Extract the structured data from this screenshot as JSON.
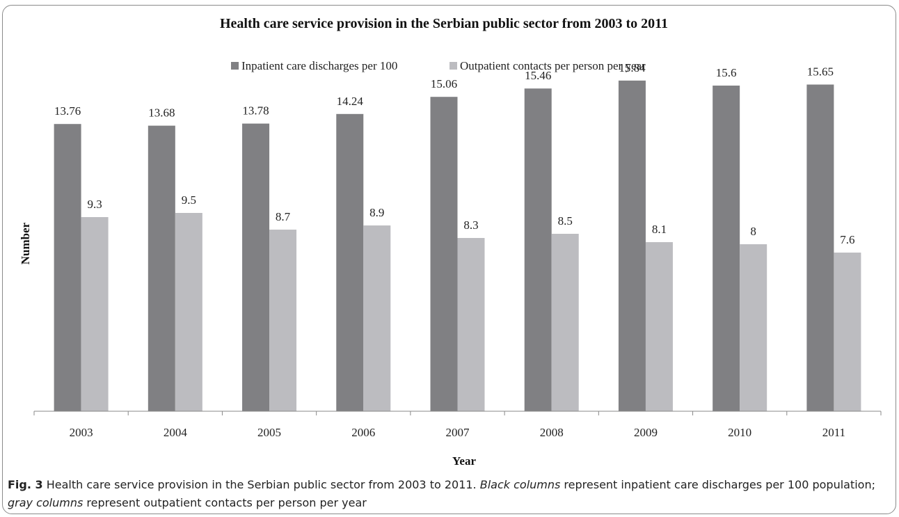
{
  "chart_data": {
    "type": "bar",
    "title": "Health care service provision in the Serbian public sector from 2003 to 2011",
    "xlabel": "Year",
    "ylabel": "Number",
    "categories": [
      "2003",
      "2004",
      "2005",
      "2006",
      "2007",
      "2008",
      "2009",
      "2010",
      "2011"
    ],
    "series": [
      {
        "name": "Inpatient care discharges per 100",
        "color": "#808083",
        "values": [
          13.76,
          13.68,
          13.78,
          14.24,
          15.06,
          15.46,
          15.84,
          15.6,
          15.65
        ],
        "labels": [
          "13.76",
          "13.68",
          "13.78",
          "14.24",
          "15.06",
          "15.46",
          "15.84",
          "15.6",
          "15.65"
        ]
      },
      {
        "name": "Outpatient contacts per person per year",
        "color": "#bcbcc0",
        "values": [
          9.3,
          9.5,
          8.7,
          8.9,
          8.3,
          8.5,
          8.1,
          8,
          7.6
        ],
        "labels": [
          "9.3",
          "9.5",
          "8.7",
          "8.9",
          "8.3",
          "8.5",
          "8.1",
          "8",
          "7.6"
        ]
      }
    ],
    "ylim": [
      0,
      18
    ],
    "legend_position": "top",
    "grid": false
  },
  "caption": {
    "fig_label": "Fig. 3",
    "text_1": " Health care service provision in the Serbian public sector from 2003 to 2011. ",
    "italic_1": "Black columns",
    "text_2": " represent inpatient care discharges per 100 population; ",
    "italic_2": "gray columns",
    "text_3": " represent outpatient contacts per person per year"
  }
}
